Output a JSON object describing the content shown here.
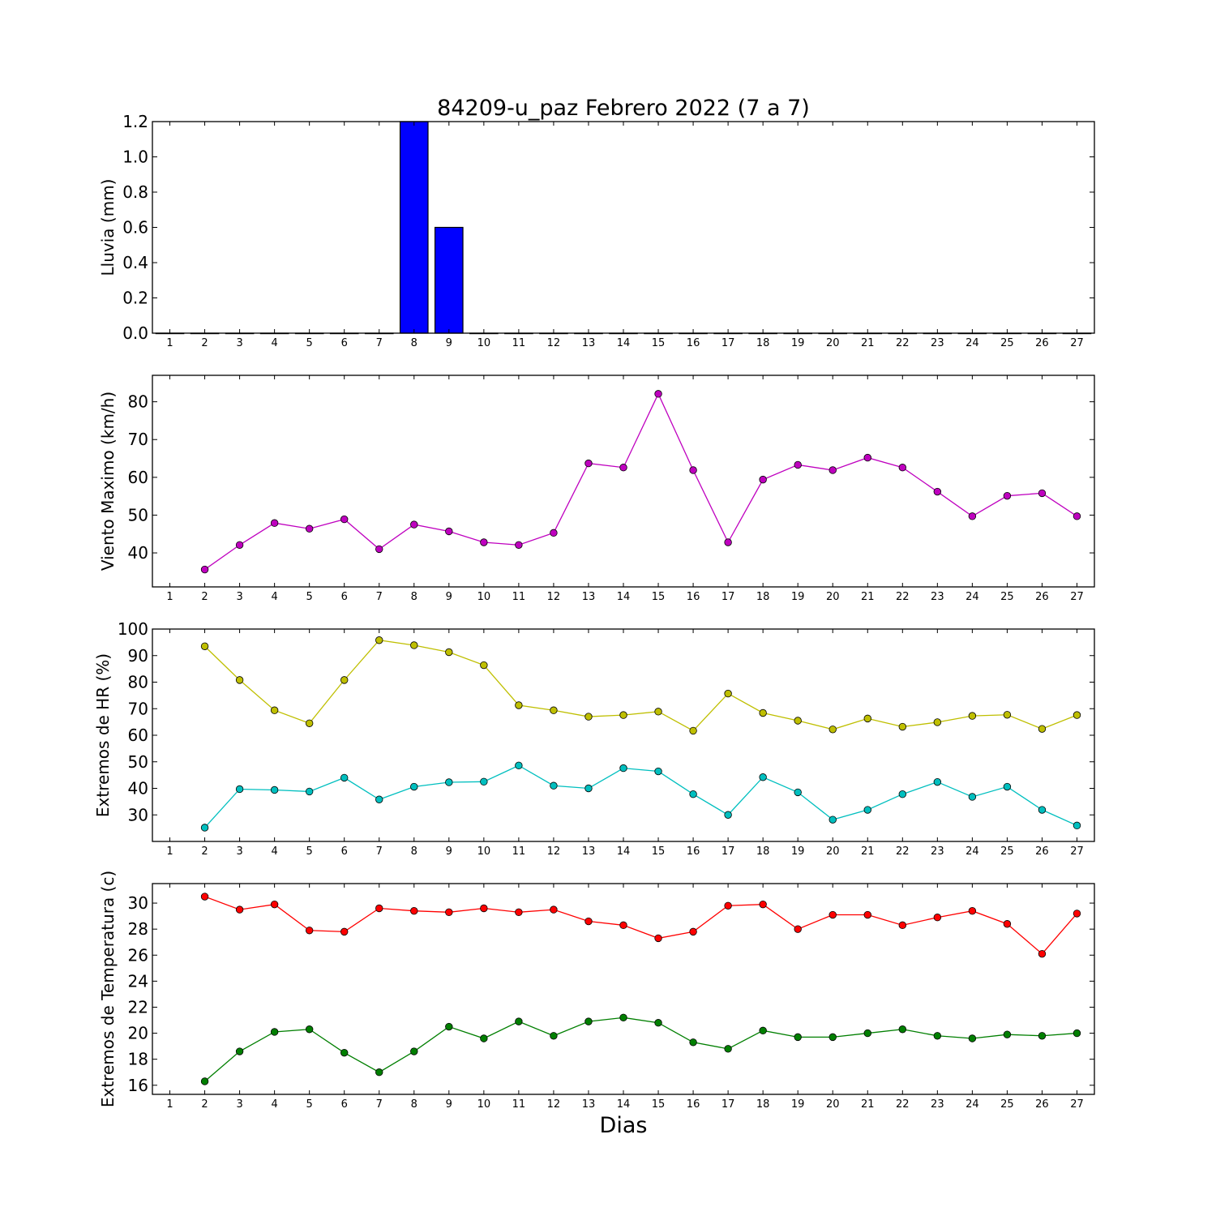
{
  "title": "84209-u_paz Febrero 2022  (7 a 7)",
  "xlabel": "Dias",
  "chart_data": [
    {
      "type": "bar",
      "ylabel": "Lluvia (mm)",
      "x": [
        1,
        2,
        3,
        4,
        5,
        6,
        7,
        8,
        9,
        10,
        11,
        12,
        13,
        14,
        15,
        16,
        17,
        18,
        19,
        20,
        21,
        22,
        23,
        24,
        25,
        26,
        27
      ],
      "xlim": [
        0.5,
        27.5
      ],
      "ylim": [
        0,
        1.2
      ],
      "yticks": [
        0.0,
        0.2,
        0.4,
        0.6,
        0.8,
        1.0,
        1.2
      ],
      "ytick_labels": [
        "0.0",
        "0.2",
        "0.4",
        "0.6",
        "0.8",
        "1.0",
        "1.2"
      ],
      "categories": [
        1,
        2,
        3,
        4,
        5,
        6,
        7,
        8,
        9,
        10,
        11,
        12,
        13,
        14,
        15,
        16,
        17,
        18,
        19,
        20,
        21,
        22,
        23,
        24,
        25,
        26,
        27
      ],
      "values": [
        0,
        0,
        0,
        0,
        0,
        0,
        0,
        1.2,
        0.6,
        0,
        0,
        0,
        0,
        0,
        0,
        0,
        0,
        0,
        0,
        0,
        0,
        0,
        0,
        0,
        0,
        0,
        0
      ],
      "color": "#0000ff"
    },
    {
      "type": "line",
      "ylabel": "Viento Maximo (km/h)",
      "xlim": [
        0.5,
        27.5
      ],
      "ylim": [
        31,
        87
      ],
      "yticks": [
        40,
        50,
        60,
        70,
        80
      ],
      "ytick_labels": [
        "40",
        "50",
        "60",
        "70",
        "80"
      ],
      "series": [
        {
          "color": "#bf00bf",
          "x": [
            2,
            3,
            4,
            5,
            6,
            7,
            8,
            9,
            10,
            11,
            12,
            13,
            14,
            15,
            16,
            17,
            18,
            19,
            20,
            21,
            22,
            23,
            24,
            25,
            26,
            27
          ],
          "values": [
            35.6,
            42.1,
            47.9,
            46.4,
            48.9,
            41.0,
            47.5,
            45.7,
            42.8,
            42.1,
            45.3,
            63.7,
            62.6,
            82.1,
            61.9,
            42.8,
            59.4,
            63.3,
            61.9,
            65.2,
            62.6,
            56.2,
            49.7,
            55.1,
            55.8,
            49.7
          ]
        }
      ]
    },
    {
      "type": "line",
      "ylabel": "Extremos de HR (%)",
      "xlim": [
        0.5,
        27.5
      ],
      "ylim": [
        20,
        100
      ],
      "yticks": [
        30,
        40,
        50,
        60,
        70,
        80,
        90,
        100
      ],
      "ytick_labels": [
        "30",
        "40",
        "50",
        "60",
        "70",
        "80",
        "90",
        "100"
      ],
      "series": [
        {
          "color": "#bfbf00",
          "x": [
            2,
            3,
            4,
            5,
            6,
            7,
            8,
            9,
            10,
            11,
            12,
            13,
            14,
            15,
            16,
            17,
            18,
            19,
            20,
            21,
            22,
            23,
            24,
            25,
            26,
            27
          ],
          "values": [
            93.5,
            80.8,
            69.4,
            64.5,
            80.8,
            95.8,
            93.9,
            91.3,
            86.4,
            71.3,
            69.4,
            67.0,
            67.6,
            68.9,
            61.7,
            75.7,
            68.4,
            65.5,
            62.2,
            66.3,
            63.2,
            64.9,
            67.3,
            67.7,
            62.4,
            67.6
          ]
        },
        {
          "color": "#00bfbf",
          "x": [
            2,
            3,
            4,
            5,
            6,
            7,
            8,
            9,
            10,
            11,
            12,
            13,
            14,
            15,
            16,
            17,
            18,
            19,
            20,
            21,
            22,
            23,
            24,
            25,
            26,
            27
          ],
          "values": [
            25.2,
            39.7,
            39.4,
            38.8,
            44.0,
            35.8,
            40.6,
            42.3,
            42.5,
            48.6,
            41.0,
            40.0,
            47.6,
            46.4,
            37.8,
            30.0,
            44.2,
            38.5,
            28.2,
            31.9,
            37.8,
            42.4,
            36.8,
            40.6,
            31.9,
            26.0
          ]
        }
      ]
    },
    {
      "type": "line",
      "ylabel": "Extremos de Temperatura (c)",
      "xlim": [
        0.5,
        27.5
      ],
      "ylim": [
        15.3,
        31.5
      ],
      "yticks": [
        16,
        18,
        20,
        22,
        24,
        26,
        28,
        30
      ],
      "ytick_labels": [
        "16",
        "18",
        "20",
        "22",
        "24",
        "26",
        "28",
        "30"
      ],
      "series": [
        {
          "color": "#ff0000",
          "x": [
            2,
            3,
            4,
            5,
            6,
            7,
            8,
            9,
            10,
            11,
            12,
            13,
            14,
            15,
            16,
            17,
            18,
            19,
            20,
            21,
            22,
            23,
            24,
            25,
            26,
            27
          ],
          "values": [
            30.5,
            29.5,
            29.9,
            27.9,
            27.8,
            29.6,
            29.4,
            29.3,
            29.6,
            29.3,
            29.5,
            28.6,
            28.3,
            27.3,
            27.8,
            29.8,
            29.9,
            28.0,
            29.1,
            29.1,
            28.3,
            28.9,
            29.4,
            28.4,
            26.1,
            29.2
          ]
        },
        {
          "color": "#007f00",
          "x": [
            2,
            3,
            4,
            5,
            6,
            7,
            8,
            9,
            10,
            11,
            12,
            13,
            14,
            15,
            16,
            17,
            18,
            19,
            20,
            21,
            22,
            23,
            24,
            25,
            26,
            27
          ],
          "values": [
            16.3,
            18.6,
            20.1,
            20.3,
            18.5,
            17.0,
            18.6,
            20.5,
            19.6,
            20.9,
            19.8,
            20.9,
            21.2,
            20.8,
            19.3,
            18.8,
            20.2,
            19.7,
            19.7,
            20.0,
            20.3,
            19.8,
            19.6,
            19.9,
            19.8,
            20.0
          ]
        }
      ]
    }
  ]
}
